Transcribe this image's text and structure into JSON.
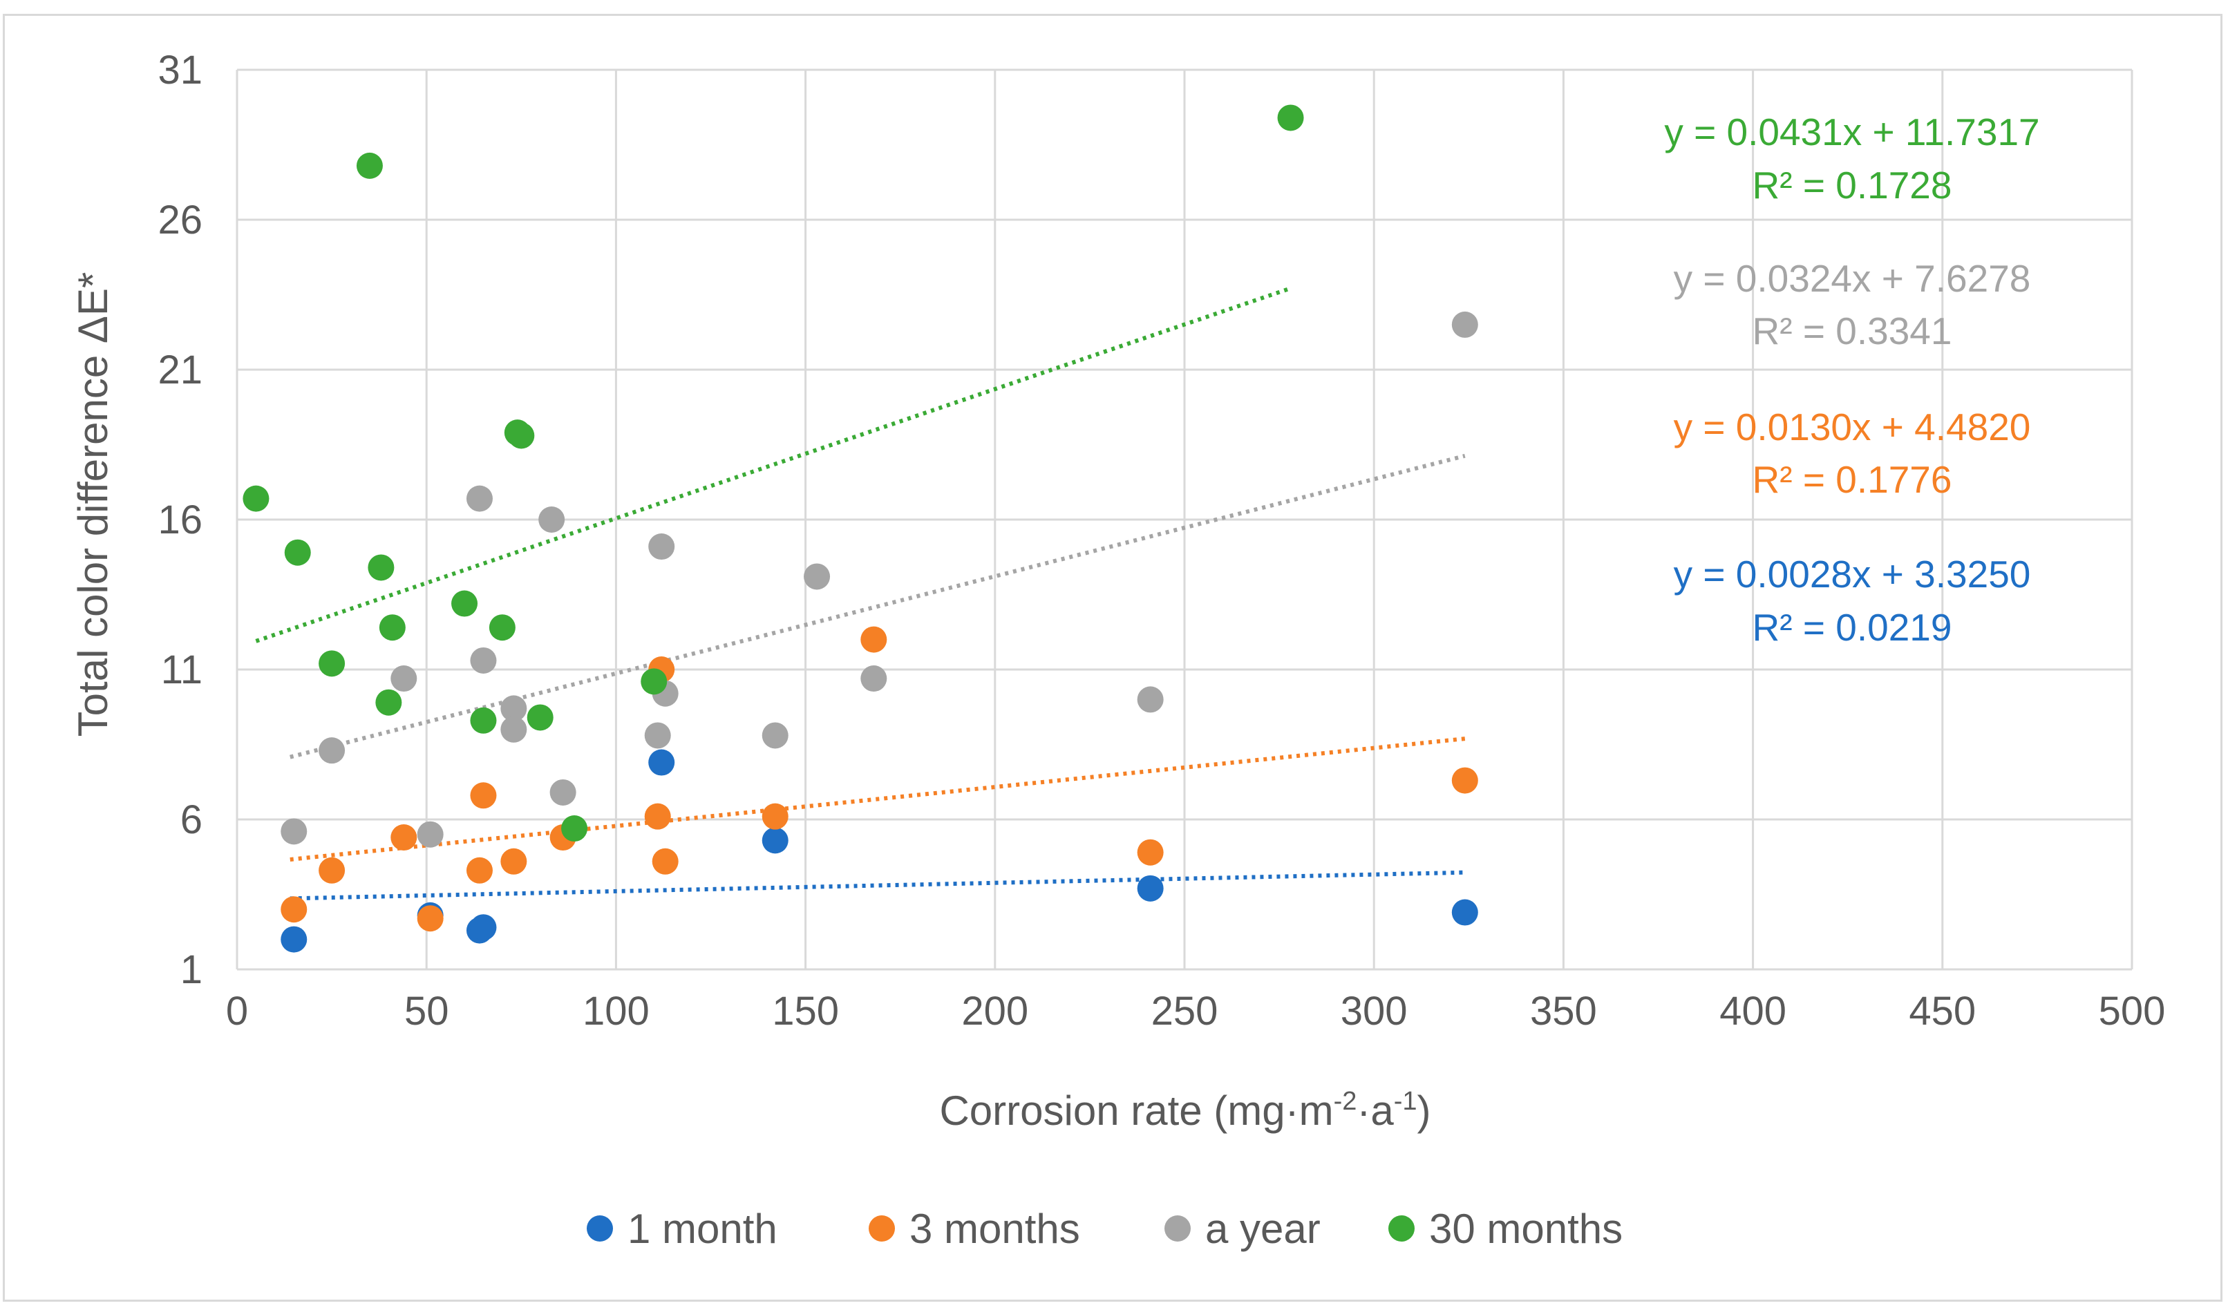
{
  "chart_data": {
    "type": "scatter",
    "title": "",
    "xlabel_main": "Corrosion rate (mg·m",
    "xlabel_sup1": "-2",
    "xlabel_mid": "·a",
    "xlabel_sup2": "-1",
    "xlabel_end": ")",
    "ylabel": "Total color difference ΔE*",
    "xlim": [
      0,
      500
    ],
    "ylim": [
      1,
      31
    ],
    "x_ticks": [
      0,
      50,
      100,
      150,
      200,
      250,
      300,
      350,
      400,
      450,
      500
    ],
    "y_ticks": [
      1,
      6,
      11,
      16,
      21,
      26,
      31
    ],
    "x_tick_labels": [
      "0",
      "50",
      "100",
      "150",
      "200",
      "250",
      "300",
      "350",
      "400",
      "450",
      "500"
    ],
    "y_tick_labels": [
      "1",
      "6",
      "11",
      "16",
      "21",
      "26",
      "31"
    ],
    "grid": true,
    "legend_position": "bottom",
    "series": [
      {
        "name": "1 month",
        "color": "#1f6fc5",
        "points": [
          [
            15,
            2.0
          ],
          [
            51,
            2.8
          ],
          [
            64,
            2.3
          ],
          [
            65,
            2.4
          ],
          [
            112,
            7.9
          ],
          [
            142,
            5.3
          ],
          [
            241,
            3.7
          ],
          [
            324,
            2.9
          ]
        ],
        "trendline": {
          "slope": 0.0028,
          "intercept": 3.325,
          "x_range": [
            14,
            324
          ]
        },
        "equation": "y = 0.0028x + 3.3250",
        "r2": "R² = 0.0219"
      },
      {
        "name": "3 months",
        "color": "#f58025",
        "points": [
          [
            15,
            3.0
          ],
          [
            25,
            4.3
          ],
          [
            44,
            5.4
          ],
          [
            51,
            2.7
          ],
          [
            64,
            4.3
          ],
          [
            65,
            6.8
          ],
          [
            73,
            4.6
          ],
          [
            86,
            5.4
          ],
          [
            111,
            6.1
          ],
          [
            112,
            11.0
          ],
          [
            113,
            4.6
          ],
          [
            142,
            6.1
          ],
          [
            168,
            12.0
          ],
          [
            241,
            4.9
          ],
          [
            324,
            7.3
          ]
        ],
        "trendline": {
          "slope": 0.013,
          "intercept": 4.482,
          "x_range": [
            14,
            324
          ]
        },
        "equation": "y = 0.0130x + 4.4820",
        "r2": "R² = 0.1776"
      },
      {
        "name": "a year",
        "color": "#a5a5a5",
        "points": [
          [
            15,
            5.6
          ],
          [
            25,
            8.3
          ],
          [
            44,
            10.7
          ],
          [
            51,
            5.5
          ],
          [
            64,
            16.7
          ],
          [
            65,
            11.3
          ],
          [
            73,
            9.7
          ],
          [
            73,
            9.0
          ],
          [
            83,
            16.0
          ],
          [
            86,
            6.9
          ],
          [
            111,
            8.8
          ],
          [
            112,
            15.1
          ],
          [
            113,
            10.2
          ],
          [
            142,
            8.8
          ],
          [
            153,
            14.1
          ],
          [
            168,
            10.7
          ],
          [
            241,
            10.0
          ],
          [
            324,
            22.5
          ]
        ],
        "trendline": {
          "slope": 0.0324,
          "intercept": 7.6278,
          "x_range": [
            14,
            324
          ]
        },
        "equation": "y = 0.0324x + 7.6278",
        "r2": "R² = 0.3341"
      },
      {
        "name": "30 months",
        "color": "#3aaa35",
        "points": [
          [
            5,
            16.7
          ],
          [
            16,
            14.9
          ],
          [
            25,
            11.2
          ],
          [
            35,
            27.8
          ],
          [
            38,
            14.4
          ],
          [
            40,
            9.9
          ],
          [
            41,
            12.4
          ],
          [
            60,
            13.2
          ],
          [
            65,
            9.3
          ],
          [
            70,
            12.4
          ],
          [
            74,
            18.9
          ],
          [
            75,
            18.8
          ],
          [
            80,
            9.4
          ],
          [
            89,
            5.7
          ],
          [
            110,
            10.6
          ],
          [
            278,
            29.4
          ]
        ],
        "trendline": {
          "slope": 0.0431,
          "intercept": 11.7317,
          "x_range": [
            5,
            278
          ]
        },
        "equation": "y = 0.0431x + 11.7317",
        "r2": "R² = 0.1728"
      }
    ],
    "annotation_order": [
      "30 months",
      "a year",
      "3 months",
      "1 month"
    ]
  }
}
